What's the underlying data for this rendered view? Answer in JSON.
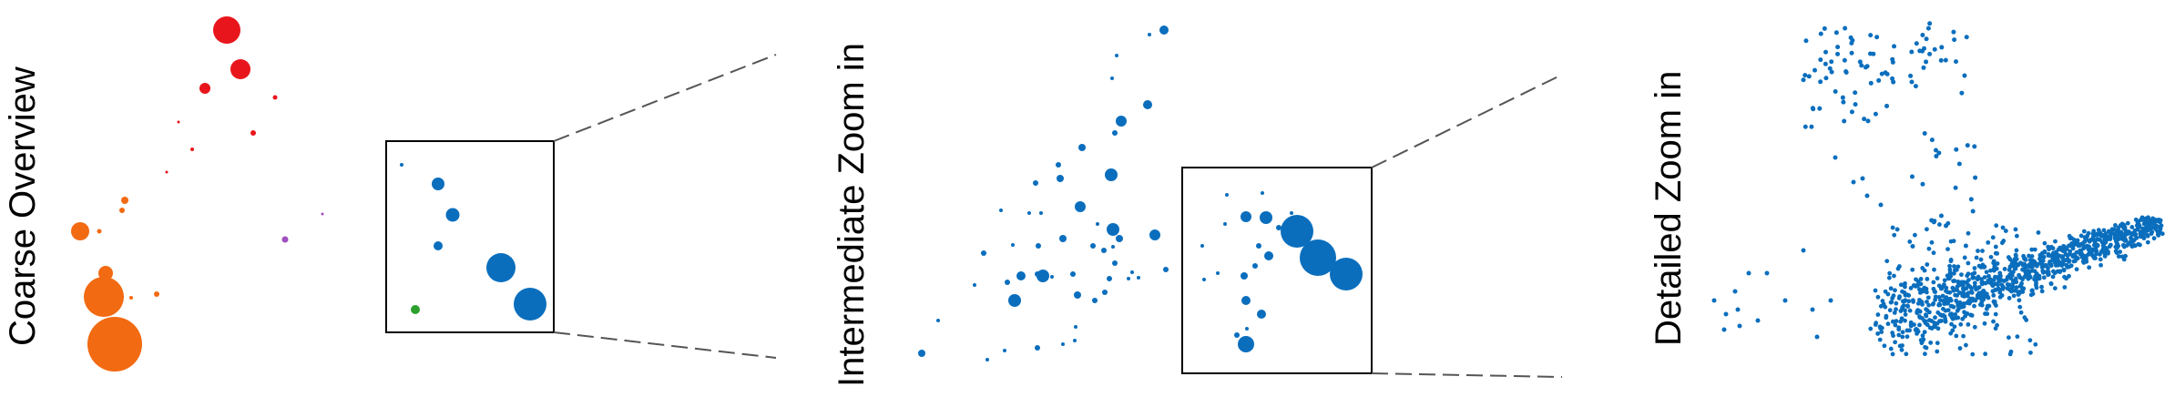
{
  "figure": {
    "panels": [
      {
        "id": "coarse",
        "label": "Coarse Overview"
      },
      {
        "id": "intermediate",
        "label": "Intermediate Zoom in"
      },
      {
        "id": "detailed",
        "label": "Detailed Zoom in"
      }
    ],
    "colors": {
      "red": "#e8161c",
      "orange": "#f26a12",
      "blue": "#0a6ebd",
      "purple": "#a04fc0",
      "green": "#2ca02c",
      "zoom_line": "#555555",
      "box": "#000000"
    }
  }
}
